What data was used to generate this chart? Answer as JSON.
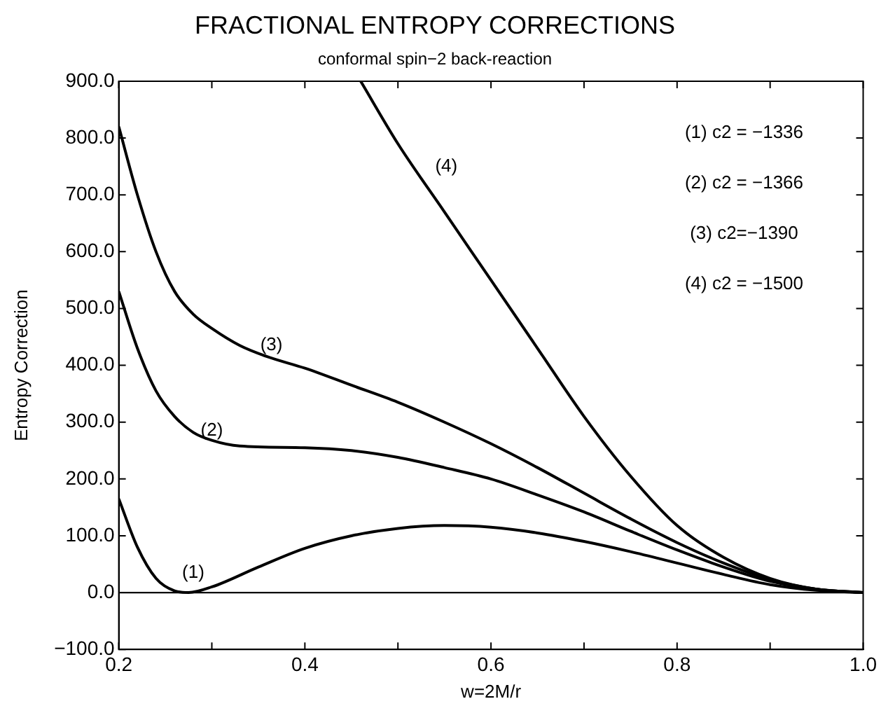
{
  "chart_data": {
    "type": "line",
    "title": "FRACTIONAL ENTROPY CORRECTIONS",
    "subtitle": "conformal spin−2 back-reaction",
    "xlabel": "w=2M/r",
    "ylabel": "Entropy Correction",
    "xlim": [
      0.2,
      1.0
    ],
    "ylim": [
      -100,
      900
    ],
    "xticks": [
      {
        "value": 0.2,
        "label": "0.2"
      },
      {
        "value": 0.3,
        "label": null
      },
      {
        "value": 0.4,
        "label": "0.4"
      },
      {
        "value": 0.5,
        "label": null
      },
      {
        "value": 0.6,
        "label": "0.6"
      },
      {
        "value": 0.7,
        "label": null
      },
      {
        "value": 0.8,
        "label": "0.8"
      },
      {
        "value": 0.9,
        "label": null
      },
      {
        "value": 1.0,
        "label": "1.0"
      }
    ],
    "yticks": [
      {
        "value": -100,
        "label": "−100.0"
      },
      {
        "value": 0,
        "label": "0.0"
      },
      {
        "value": 100,
        "label": "100.0"
      },
      {
        "value": 200,
        "label": "200.0"
      },
      {
        "value": 300,
        "label": "300.0"
      },
      {
        "value": 400,
        "label": "400.0"
      },
      {
        "value": 500,
        "label": "500.0"
      },
      {
        "value": 600,
        "label": "600.0"
      },
      {
        "value": 700,
        "label": "700.0"
      },
      {
        "value": 800,
        "label": "800.0"
      },
      {
        "value": 900,
        "label": "900.0"
      }
    ],
    "grid": false,
    "legend": false,
    "marker": "none",
    "line_style": "solid",
    "ref_lines": [
      {
        "axis": "y",
        "value": 0,
        "color": "#000000"
      }
    ],
    "series": [
      {
        "name": "(1)",
        "color": "#000000",
        "x": [
          0.2,
          0.22,
          0.24,
          0.26,
          0.275,
          0.3,
          0.35,
          0.4,
          0.45,
          0.5,
          0.55,
          0.6,
          0.65,
          0.7,
          0.75,
          0.8,
          0.85,
          0.9,
          0.95,
          1.0
        ],
        "values": [
          165,
          80,
          25,
          3,
          0,
          10,
          45,
          78,
          100,
          113,
          118,
          115,
          105,
          90,
          72,
          52,
          32,
          14,
          4,
          0
        ]
      },
      {
        "name": "(2)",
        "color": "#000000",
        "x": [
          0.2,
          0.22,
          0.24,
          0.26,
          0.28,
          0.3,
          0.33,
          0.4,
          0.45,
          0.5,
          0.55,
          0.6,
          0.65,
          0.7,
          0.75,
          0.8,
          0.85,
          0.9,
          0.95,
          1.0
        ],
        "values": [
          530,
          430,
          355,
          310,
          282,
          268,
          258,
          255,
          250,
          238,
          220,
          200,
          172,
          142,
          108,
          75,
          45,
          20,
          6,
          0
        ]
      },
      {
        "name": "(3)",
        "color": "#000000",
        "x": [
          0.2,
          0.22,
          0.24,
          0.26,
          0.28,
          0.3,
          0.33,
          0.36,
          0.4,
          0.45,
          0.5,
          0.55,
          0.6,
          0.65,
          0.7,
          0.75,
          0.8,
          0.85,
          0.9,
          0.95,
          1.0
        ],
        "values": [
          820,
          700,
          600,
          530,
          490,
          465,
          435,
          415,
          395,
          365,
          335,
          300,
          262,
          220,
          175,
          130,
          88,
          52,
          23,
          6,
          0
        ]
      },
      {
        "name": "(4)",
        "color": "#000000",
        "x": [
          0.46,
          0.5,
          0.55,
          0.6,
          0.65,
          0.7,
          0.75,
          0.8,
          0.85,
          0.9,
          0.95,
          1.0
        ],
        "values": [
          900,
          790,
          670,
          550,
          430,
          310,
          205,
          118,
          62,
          25,
          6,
          0
        ]
      }
    ],
    "annotations": [
      "(1) c2 = −1336",
      "(2) c2 = −1366",
      "(3) c2=−1390",
      "(4) c2 = −1500"
    ]
  }
}
